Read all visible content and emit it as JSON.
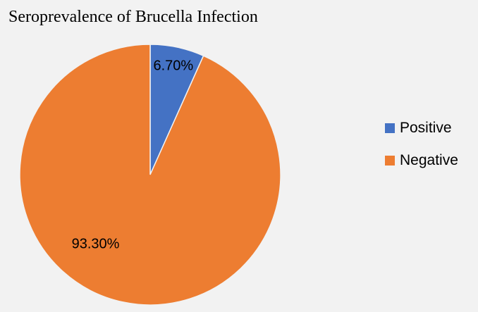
{
  "chart_data": {
    "type": "pie",
    "title": "Seroprevalence of Brucella Infection",
    "categories": [
      "Positive",
      "Negative"
    ],
    "values": [
      6.7,
      93.3
    ],
    "data_labels": [
      "6.70%",
      "93.30%"
    ],
    "colors": [
      "#4472c4",
      "#ed7d31"
    ],
    "legend_position": "right"
  }
}
